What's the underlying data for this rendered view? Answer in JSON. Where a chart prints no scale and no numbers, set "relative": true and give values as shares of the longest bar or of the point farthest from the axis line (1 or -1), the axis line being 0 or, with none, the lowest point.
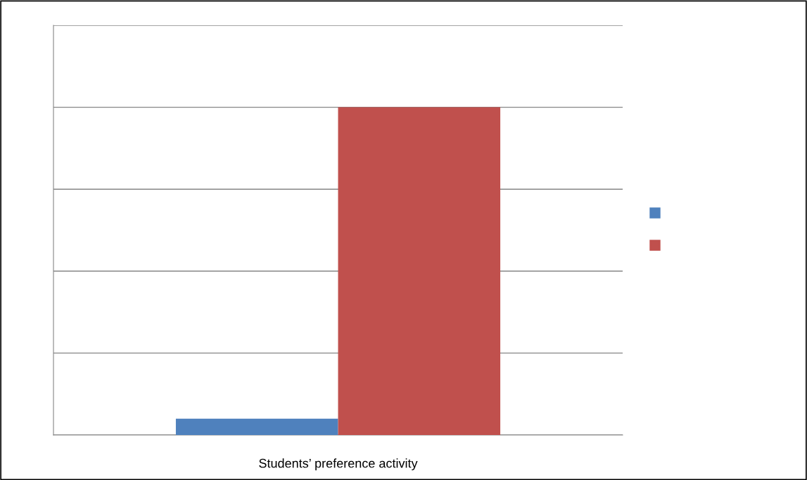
{
  "chart_data": {
    "type": "bar",
    "relative": true,
    "categories": [
      null
    ],
    "xlabel": "Students’ preference activity",
    "series": [
      {
        "color": "#4f81bd",
        "values": [
          0.05
        ]
      },
      {
        "color": "#c0504d",
        "values": [
          1
        ]
      }
    ],
    "grid": "y"
  }
}
